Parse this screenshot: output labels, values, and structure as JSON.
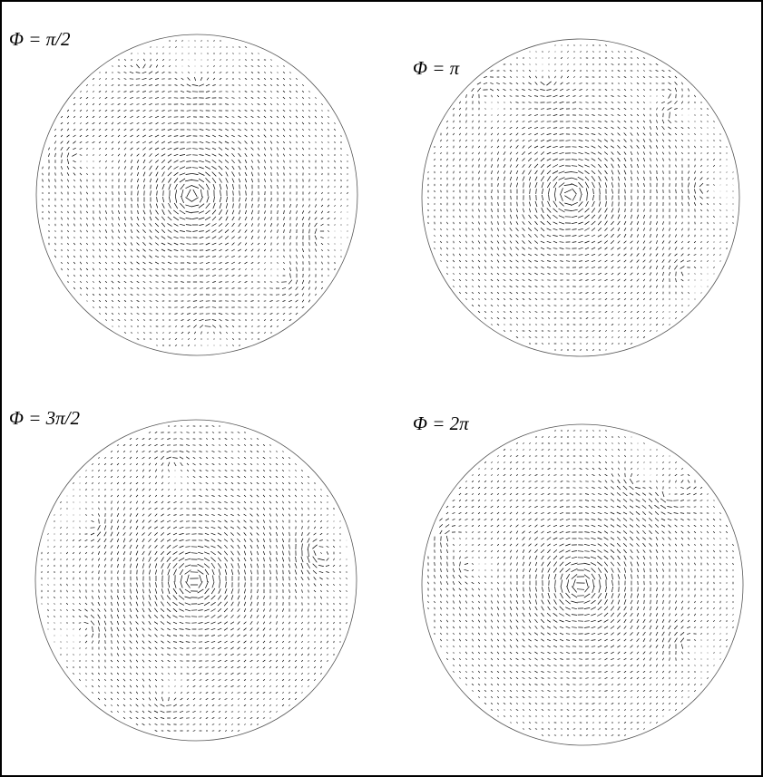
{
  "panels": [
    {
      "label": "Φ = π/2"
    },
    {
      "label": "Φ = π"
    },
    {
      "label": "Φ = 3π/2"
    },
    {
      "label": "Φ = 2π"
    }
  ]
}
